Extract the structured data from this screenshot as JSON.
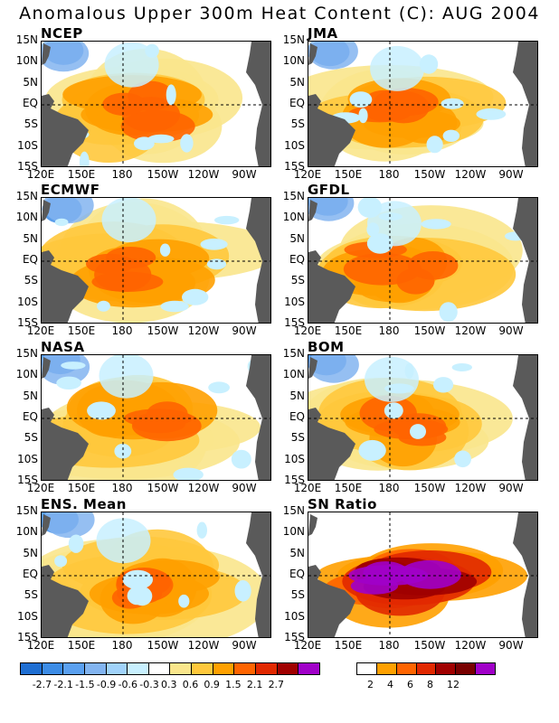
{
  "title": "Anomalous Upper 300m Heat Content (C): AUG 2004",
  "lat_labels": [
    "15N",
    "10N",
    "5N",
    "EQ",
    "5S",
    "10S",
    "15S"
  ],
  "lon_labels": [
    "120E",
    "150E",
    "180",
    "150W",
    "120W",
    "90W"
  ],
  "panels": [
    {
      "name": "NCEP"
    },
    {
      "name": "JMA"
    },
    {
      "name": "ECMWF"
    },
    {
      "name": "GFDL"
    },
    {
      "name": "NASA"
    },
    {
      "name": "BOM"
    },
    {
      "name": "ENS. Mean"
    },
    {
      "name": "SN Ratio"
    }
  ],
  "colorbar_anomaly": {
    "colors": [
      "#1e6ed2",
      "#3c8ce6",
      "#5aa0f0",
      "#82b4f0",
      "#a0d2fa",
      "#c8f0ff",
      "#ffffff",
      "#fae68c",
      "#ffc83c",
      "#ffa000",
      "#ff6400",
      "#e12800",
      "#a00000",
      "#a000c8"
    ],
    "labels": [
      "-2.7",
      "-2.1",
      "-1.5",
      "-0.9",
      "-0.6",
      "-0.3",
      "0.3",
      "0.6",
      "0.9",
      "1.5",
      "2.1",
      "2.7"
    ]
  },
  "colorbar_sn": {
    "colors": [
      "#ffffff",
      "#ffa000",
      "#ff6400",
      "#e12800",
      "#a00000",
      "#780000",
      "#a000c8"
    ],
    "labels": [
      "2",
      "4",
      "6",
      "8",
      "12"
    ]
  }
}
